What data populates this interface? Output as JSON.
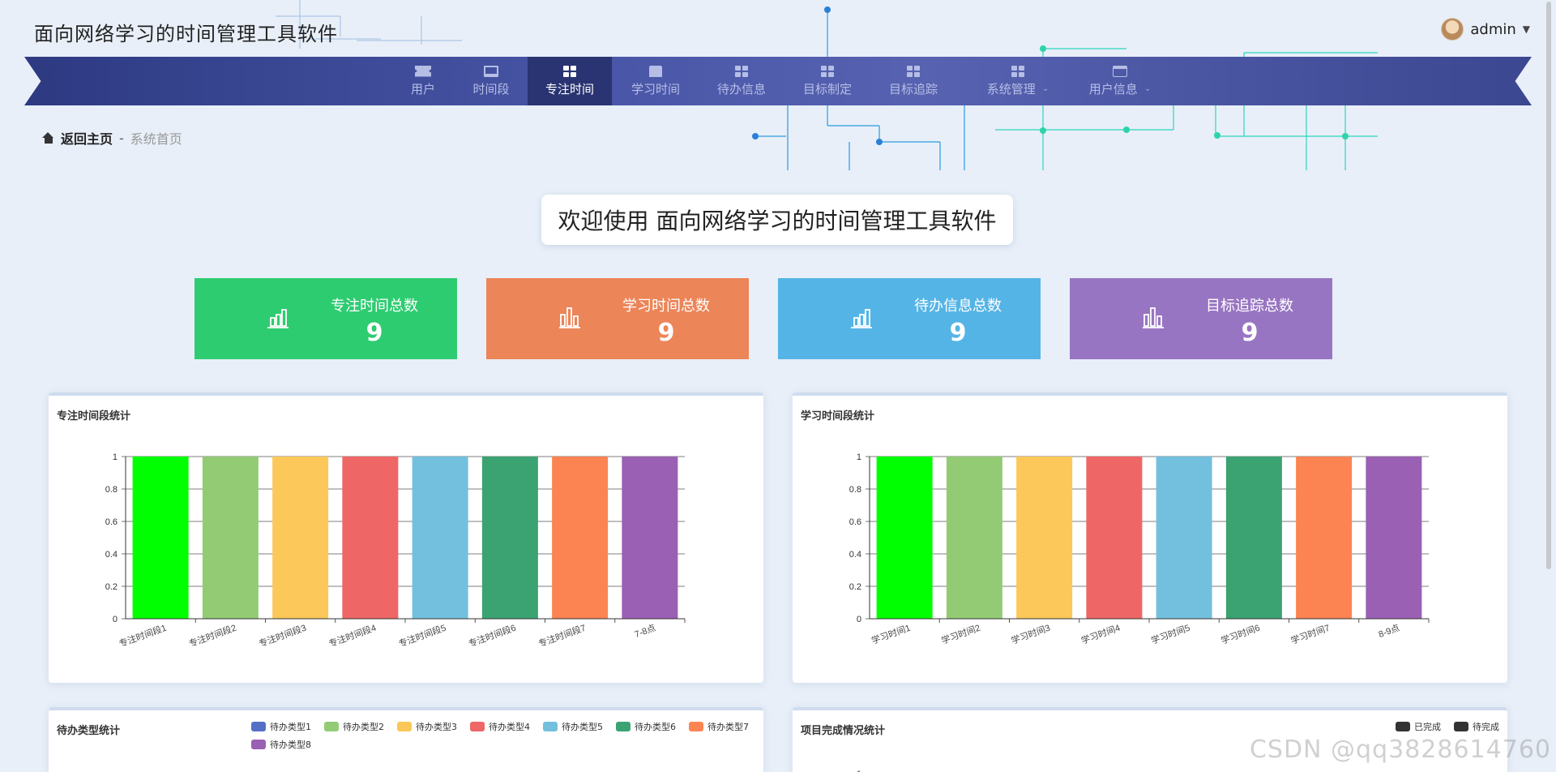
{
  "header": {
    "app_title": "面向网络学习的时间管理工具软件",
    "username": "admin"
  },
  "nav": {
    "items": [
      {
        "label": "用户",
        "icon": "ticket-icon"
      },
      {
        "label": "时间段",
        "icon": "monitor-icon"
      },
      {
        "label": "专注时间",
        "icon": "grid-icon",
        "active": true
      },
      {
        "label": "学习时间",
        "icon": "printer-icon"
      },
      {
        "label": "待办信息",
        "icon": "grid-icon"
      },
      {
        "label": "目标制定",
        "icon": "grid-icon"
      },
      {
        "label": "目标追踪",
        "icon": "grid-icon"
      },
      {
        "label": "系统管理",
        "icon": "grid-icon",
        "dropdown": true
      },
      {
        "label": "用户信息",
        "icon": "card-icon",
        "dropdown": true
      }
    ]
  },
  "breadcrumb": {
    "home": "返回主页",
    "separator": "-",
    "current": "系统首页"
  },
  "welcome": "欢迎使用 面向网络学习的时间管理工具软件",
  "stats": [
    {
      "label": "专注时间总数",
      "value": "9",
      "color": "#2ecc71"
    },
    {
      "label": "学习时间总数",
      "value": "9",
      "color": "#ec8558"
    },
    {
      "label": "待办信息总数",
      "value": "9",
      "color": "#55b4e6"
    },
    {
      "label": "目标追踪总数",
      "value": "9",
      "color": "#9875c2"
    }
  ],
  "palette": [
    "#00ff00",
    "#93cb74",
    "#fbc859",
    "#ee6666",
    "#73c0de",
    "#3ba272",
    "#fc8452",
    "#9a60b4"
  ],
  "panels": {
    "focus_title": "专注时间段统计",
    "study_title": "学习时间段统计",
    "todo_title": "待办类型统计",
    "project_title": "项目完成情况统计"
  },
  "todo_legend": {
    "labels": [
      "待办类型1",
      "待办类型2",
      "待办类型3",
      "待办类型4",
      "待办类型5",
      "待办类型6",
      "待办类型7",
      "待办类型8"
    ],
    "colors": [
      "#5470c6",
      "#91cc75",
      "#fac858",
      "#ee6666",
      "#73c0de",
      "#3ba272",
      "#fc8452",
      "#9a60b4"
    ]
  },
  "project_legend": {
    "labels": [
      "已完成",
      "待完成"
    ],
    "colors": [
      "#333333",
      "#333333"
    ]
  },
  "watermark": "CSDN @qq3828614760",
  "chart_data": [
    {
      "type": "bar",
      "title": "专注时间段统计",
      "categories": [
        "专注时间段1",
        "专注时间段2",
        "专注时间段3",
        "专注时间段4",
        "专注时间段5",
        "专注时间段6",
        "专注时间段7",
        "7-8点"
      ],
      "values": [
        1,
        1,
        1,
        1,
        1,
        1,
        1,
        1
      ],
      "ylim": [
        0,
        1
      ],
      "yticks": [
        "0",
        "0.2",
        "0.4",
        "0.6",
        "0.8",
        "1"
      ],
      "grid": true
    },
    {
      "type": "bar",
      "title": "学习时间段统计",
      "categories": [
        "学习时间1",
        "学习时间2",
        "学习时间3",
        "学习时间4",
        "学习时间5",
        "学习时间6",
        "学习时间7",
        "8-9点"
      ],
      "values": [
        1,
        1,
        1,
        1,
        1,
        1,
        1,
        1
      ],
      "ylim": [
        0,
        1
      ],
      "yticks": [
        "0",
        "0.2",
        "0.4",
        "0.6",
        "0.8",
        "1"
      ],
      "grid": true
    },
    {
      "type": "bar",
      "title": "项目完成情况统计",
      "series": [
        {
          "name": "已完成"
        },
        {
          "name": "待完成"
        }
      ],
      "yticks": [
        "1"
      ],
      "partially_visible": true
    }
  ]
}
